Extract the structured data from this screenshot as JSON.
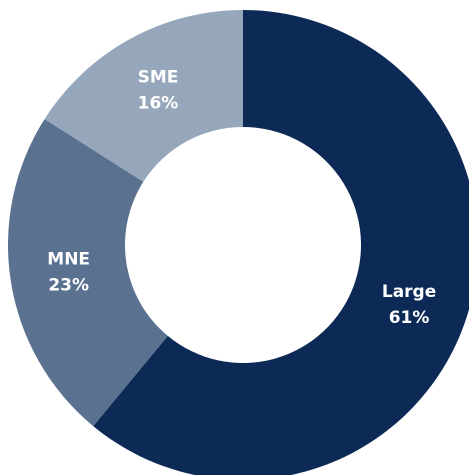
{
  "chart_data": {
    "type": "donut",
    "categories": [
      "Large",
      "MNE",
      "SME"
    ],
    "values": [
      61,
      23,
      16
    ],
    "value_labels": [
      "61%",
      "23%",
      "16%"
    ],
    "colors": [
      "#0d2a57",
      "#5a7190",
      "#97a7bb"
    ]
  }
}
